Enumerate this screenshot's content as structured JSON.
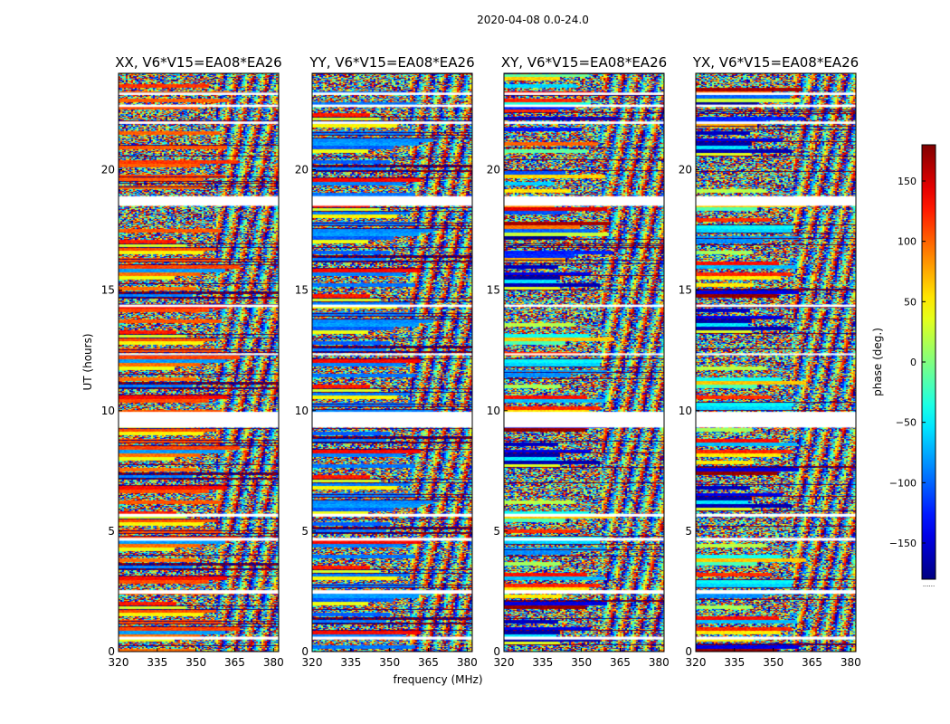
{
  "figure": {
    "suptitle": "2020-04-08 0.0-24.0",
    "xlabel": "frequency (MHz)",
    "ylabel": "UT (hours)"
  },
  "chart_data": {
    "type": "heatmap",
    "x": {
      "label": "frequency (MHz)",
      "range": [
        320,
        382
      ],
      "ticks": [
        "320",
        "335",
        "350",
        "365",
        "380"
      ],
      "tick_values": [
        320,
        335,
        350,
        365,
        380
      ]
    },
    "y": {
      "label": "UT (hours)",
      "range": [
        0,
        24
      ],
      "ticks": [
        "0",
        "5",
        "10",
        "15",
        "20"
      ],
      "tick_values": [
        0,
        5,
        10,
        15,
        20
      ]
    },
    "panels": [
      {
        "title": "XX, V6*V15=EA08*EA26",
        "pol": "XX"
      },
      {
        "title": "YY, V6*V15=EA08*EA26",
        "pol": "YY"
      },
      {
        "title": "XY, V6*V15=EA08*EA26",
        "pol": "XY"
      },
      {
        "title": "YX, V6*V15=EA08*EA26",
        "pol": "YX"
      }
    ],
    "flagged_hours": [
      [
        0.5,
        0.62
      ],
      [
        2.4,
        2.55
      ],
      [
        4.6,
        4.72
      ],
      [
        5.6,
        5.72
      ],
      [
        9.3,
        9.95
      ],
      [
        12.3,
        12.38
      ],
      [
        14.3,
        14.4
      ],
      [
        18.5,
        18.9
      ],
      [
        21.9,
        22.0
      ],
      [
        22.6,
        22.7
      ],
      [
        23.1,
        23.2
      ]
    ],
    "colorbar": {
      "label": "phase (deg.)",
      "range": [
        -180,
        180
      ],
      "ticks": [
        "150",
        "100",
        "50",
        "0",
        "−50",
        "−100",
        "−150"
      ],
      "tick_values": [
        150,
        100,
        50,
        0,
        -50,
        -100,
        -150
      ],
      "colormap": "jet",
      "extra": "......"
    }
  },
  "colors": {
    "axis": "#000000",
    "flag": "#ffffff"
  }
}
